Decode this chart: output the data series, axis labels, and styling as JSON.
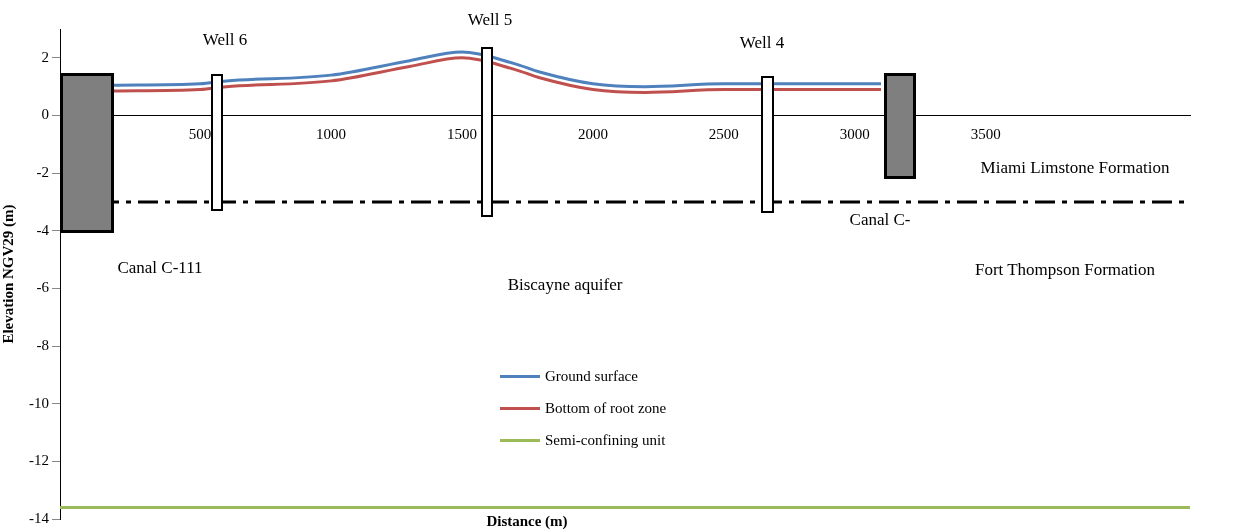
{
  "chart_data": {
    "type": "line",
    "xlabel": "Distance (m)",
    "ylabel": "Elevation NGV29 (m)",
    "xlim": [
      -35,
      4280
    ],
    "ylim": [
      -14,
      3
    ],
    "xticks": [
      500,
      1000,
      1500,
      2000,
      2500,
      3000,
      3500
    ],
    "yticks": [
      -14,
      -12,
      -10,
      -8,
      -6,
      -4,
      -2,
      0,
      2
    ],
    "grid": false,
    "legend": "center",
    "marker": "none",
    "series": [
      {
        "name": "Ground surface",
        "color": "#4f81bd",
        "x": [
          168,
          500,
          600,
          1000,
          1300,
          1500,
          1700,
          1800,
          2000,
          2200,
          2500,
          3000,
          3100
        ],
        "values": [
          1.05,
          1.1,
          1.2,
          1.4,
          1.9,
          2.2,
          1.8,
          1.5,
          1.1,
          1.0,
          1.1,
          1.1,
          1.1
        ]
      },
      {
        "name": "Bottom of root zone",
        "color": "#c0504d",
        "x": [
          168,
          500,
          600,
          1000,
          1300,
          1500,
          1700,
          1800,
          2000,
          2200,
          2500,
          3000,
          3100
        ],
        "values": [
          0.85,
          0.9,
          1.0,
          1.2,
          1.7,
          2.0,
          1.6,
          1.3,
          0.9,
          0.8,
          0.9,
          0.9,
          0.9
        ]
      },
      {
        "name": "Semi-confining unit",
        "color": "#9bbb59",
        "x": [
          -35,
          4280
        ],
        "values": [
          -13.6,
          -13.6
        ]
      }
    ],
    "ref_lines": [
      {
        "axis": "y",
        "value": -3,
        "color": "#000000",
        "line_style": "dashed"
      }
    ],
    "annotations": [
      "Well 6",
      "Well 5",
      "Well 4",
      "Canal C-111",
      "Canal C-",
      "Miami Limstone Formation",
      "Fort Thompson Formation",
      "Biscayne aquifer"
    ]
  }
}
